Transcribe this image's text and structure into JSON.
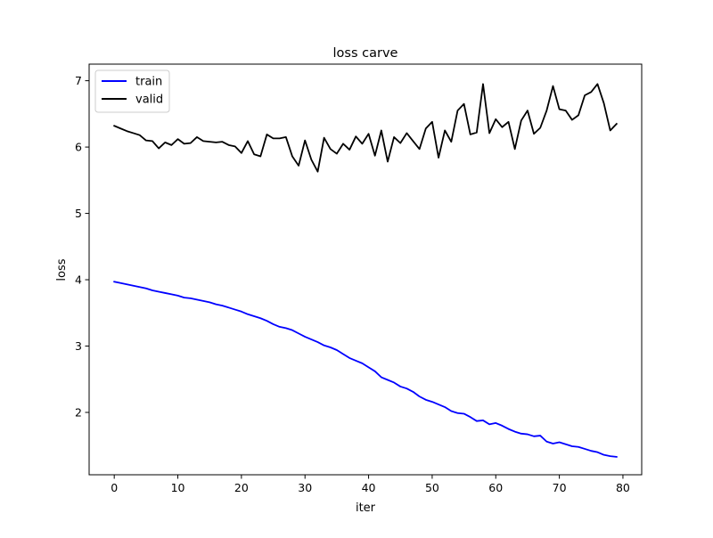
{
  "chart_data": {
    "type": "line",
    "title": "loss carve",
    "xlabel": "iter",
    "ylabel": "loss",
    "xlim": [
      -3.95,
      82.95
    ],
    "ylim": [
      1.06,
      7.25
    ],
    "x_ticks": [
      0,
      10,
      20,
      30,
      40,
      50,
      60,
      70,
      80
    ],
    "y_ticks": [
      2,
      3,
      4,
      5,
      6,
      7
    ],
    "grid": false,
    "legend": {
      "position": "top-left"
    },
    "x": [
      0,
      1,
      2,
      3,
      4,
      5,
      6,
      7,
      8,
      9,
      10,
      11,
      12,
      13,
      14,
      15,
      16,
      17,
      18,
      19,
      20,
      21,
      22,
      23,
      24,
      25,
      26,
      27,
      28,
      29,
      30,
      31,
      32,
      33,
      34,
      35,
      36,
      37,
      38,
      39,
      40,
      41,
      42,
      43,
      44,
      45,
      46,
      47,
      48,
      49,
      50,
      51,
      52,
      53,
      54,
      55,
      56,
      57,
      58,
      59,
      60,
      61,
      62,
      63,
      64,
      65,
      66,
      67,
      68,
      69,
      70,
      71,
      72,
      73,
      74,
      75,
      76,
      77,
      78,
      79
    ],
    "series": [
      {
        "name": "train",
        "color": "#0000ff",
        "values": [
          3.97,
          3.95,
          3.93,
          3.91,
          3.89,
          3.87,
          3.84,
          3.82,
          3.8,
          3.78,
          3.76,
          3.73,
          3.72,
          3.7,
          3.68,
          3.66,
          3.63,
          3.61,
          3.58,
          3.55,
          3.52,
          3.48,
          3.45,
          3.42,
          3.38,
          3.33,
          3.29,
          3.27,
          3.24,
          3.19,
          3.14,
          3.1,
          3.06,
          3.01,
          2.98,
          2.94,
          2.88,
          2.82,
          2.78,
          2.74,
          2.68,
          2.62,
          2.53,
          2.49,
          2.45,
          2.39,
          2.36,
          2.31,
          2.24,
          2.19,
          2.16,
          2.12,
          2.08,
          2.02,
          1.99,
          1.98,
          1.93,
          1.87,
          1.88,
          1.82,
          1.84,
          1.8,
          1.75,
          1.71,
          1.68,
          1.67,
          1.64,
          1.65,
          1.56,
          1.53,
          1.55,
          1.52,
          1.49,
          1.48,
          1.45,
          1.42,
          1.4,
          1.36,
          1.34,
          1.33
        ]
      },
      {
        "name": "valid",
        "color": "#000000",
        "values": [
          6.32,
          6.28,
          6.24,
          6.21,
          6.18,
          6.1,
          6.09,
          5.98,
          6.07,
          6.03,
          6.12,
          6.05,
          6.06,
          6.15,
          6.09,
          6.08,
          6.07,
          6.08,
          6.03,
          6.01,
          5.91,
          6.09,
          5.89,
          5.86,
          6.19,
          6.13,
          6.13,
          6.15,
          5.86,
          5.72,
          6.1,
          5.81,
          5.63,
          6.14,
          5.97,
          5.9,
          6.05,
          5.96,
          6.16,
          6.05,
          6.2,
          5.87,
          6.25,
          5.78,
          6.15,
          6.06,
          6.21,
          6.09,
          5.97,
          6.28,
          6.38,
          5.84,
          6.25,
          6.08,
          6.55,
          6.65,
          6.19,
          6.22,
          6.95,
          6.21,
          6.42,
          6.3,
          6.38,
          5.97,
          6.4,
          6.55,
          6.2,
          6.29,
          6.55,
          6.92,
          6.57,
          6.55,
          6.41,
          6.48,
          6.78,
          6.83,
          6.95,
          6.66,
          6.25,
          6.35
        ]
      }
    ]
  }
}
